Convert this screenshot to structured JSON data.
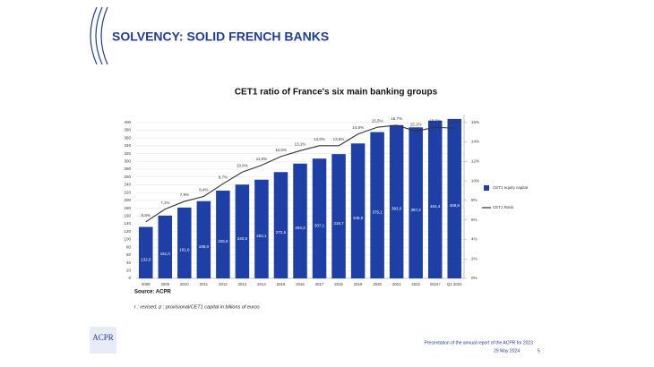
{
  "slide": {
    "title": "SOLVENCY: SOLID FRENCH BANKS",
    "logo": "ACPR",
    "footer": {
      "text": "Presentation of the annual report of the ACPR for 2023",
      "date": "29 May 2024",
      "page": "5"
    }
  },
  "chart_data": {
    "type": "bar",
    "title": "CET1 ratio of France's six main banking groups",
    "source": "Source: ACPR",
    "note": "r : revised, p : provisional/CET1 capital in billions of euros",
    "categories": [
      "2008",
      "2009",
      "2010",
      "2011",
      "2012",
      "2013",
      "2014",
      "2015",
      "2016",
      "2017",
      "2018",
      "2019",
      "2020",
      "2021",
      "2022",
      "2023 r",
      "Q1 2024"
    ],
    "series": [
      {
        "name": "CET1 equity capital",
        "type": "bar",
        "color": "#1d3fa6",
        "values": [
          132.0,
          161.0,
          181.6,
          198.0,
          225.0,
          240.5,
          253.1,
          272.5,
          294.3,
          307.1,
          318.7,
          346.0,
          375.1,
          393.0,
          387.2,
          404.4,
          408.8
        ],
        "value_labels": [
          "132,0",
          "161,0",
          "181,6",
          "198,0",
          "225,0",
          "240,5",
          "253,1",
          "272,5",
          "294,3",
          "307,1",
          "318,7",
          "346,0",
          "375,1",
          "393,0",
          "387,2",
          "404,4",
          "408,8"
        ]
      },
      {
        "name": "CET1 Ratio",
        "type": "line",
        "axis": "y2",
        "color": "#333333",
        "values": [
          5.8,
          7.1,
          7.9,
          8.4,
          9.7,
          10.9,
          11.6,
          12.5,
          13.1,
          13.6,
          13.6,
          14.8,
          15.5,
          15.7,
          15.1,
          15.5,
          15.4
        ],
        "value_labels": [
          "5,8%",
          "7,1%",
          "7,9%",
          "8,4%",
          "9,7%",
          "10,9%",
          "11,6%",
          "12,5%",
          "13,1%",
          "13,6%",
          "13,6%",
          "14,8%",
          "15,5%",
          "15,7%",
          "15,1%",
          "15,5%",
          "15,4%"
        ]
      }
    ],
    "ylim": [
      0,
      420
    ],
    "yticks": [
      0,
      20,
      40,
      60,
      80,
      100,
      120,
      140,
      160,
      180,
      200,
      220,
      240,
      260,
      280,
      300,
      320,
      340,
      360,
      380,
      400
    ],
    "y2lim": [
      0,
      16.8
    ],
    "y2ticks": [
      {
        "value": 0,
        "label": "0%"
      },
      {
        "value": 2,
        "label": "2%"
      },
      {
        "value": 4,
        "label": "4%"
      },
      {
        "value": 6,
        "label": "6%"
      },
      {
        "value": 8,
        "label": "8%"
      },
      {
        "value": 10,
        "label": "10%"
      },
      {
        "value": 12,
        "label": "12%"
      },
      {
        "value": 14,
        "label": "14%"
      },
      {
        "value": 16,
        "label": "16%"
      }
    ],
    "grid": true,
    "legend": "right"
  }
}
